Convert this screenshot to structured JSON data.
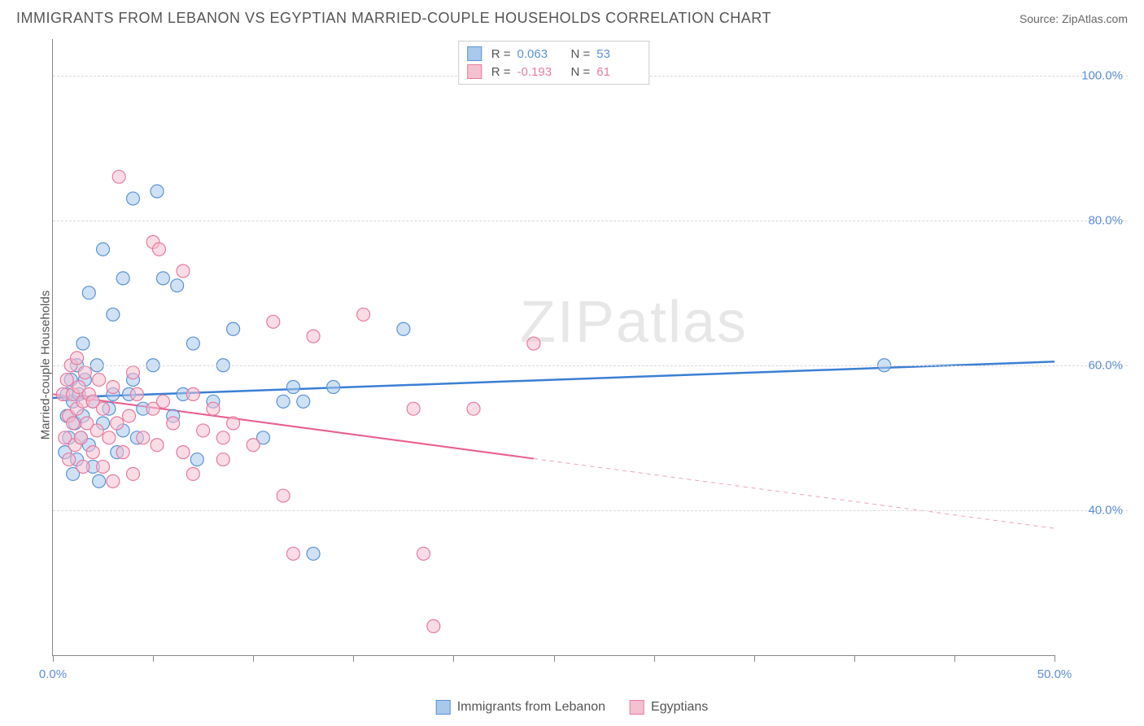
{
  "title": "IMMIGRANTS FROM LEBANON VS EGYPTIAN MARRIED-COUPLE HOUSEHOLDS CORRELATION CHART",
  "source_label": "Source: ZipAtlas.com",
  "y_axis_label": "Married-couple Households",
  "watermark": "ZIPatlas",
  "chart": {
    "type": "scatter",
    "xlim": [
      0,
      50
    ],
    "ylim": [
      20,
      105
    ],
    "background_color": "#ffffff",
    "grid_color": "#d8d8d8",
    "x_ticks": [
      0,
      5,
      10,
      15,
      20,
      25,
      30,
      35,
      40,
      45,
      50
    ],
    "x_tick_labels": {
      "0": "0.0%",
      "50": "50.0%"
    },
    "x_label_color": "#5b8fd6",
    "y_gridlines": [
      40,
      60,
      80,
      100
    ],
    "y_tick_labels": {
      "40": "40.0%",
      "60": "60.0%",
      "80": "80.0%",
      "100": "100.0%"
    },
    "y_label_color": "#5b8fd6",
    "marker_radius": 8,
    "marker_opacity": 0.55,
    "marker_stroke_width": 1.2
  },
  "series": [
    {
      "name": "Immigrants from Lebanon",
      "color_fill": "#a8c8ec",
      "color_stroke": "#5a93d6",
      "R": "0.063",
      "N": "53",
      "trend": {
        "x1": 0,
        "y1": 55.5,
        "x2": 50,
        "y2": 60.5,
        "solid_until_x": 50,
        "color": "#3b7fd4",
        "width": 2.5
      },
      "points": [
        [
          0.6,
          48
        ],
        [
          0.7,
          53
        ],
        [
          0.7,
          56
        ],
        [
          0.8,
          50
        ],
        [
          0.9,
          58
        ],
        [
          1.0,
          45
        ],
        [
          1.0,
          55
        ],
        [
          1.1,
          52
        ],
        [
          1.2,
          60
        ],
        [
          1.2,
          47
        ],
        [
          1.3,
          56
        ],
        [
          1.4,
          50
        ],
        [
          1.5,
          63
        ],
        [
          1.5,
          53
        ],
        [
          1.6,
          58
        ],
        [
          1.8,
          49
        ],
        [
          1.8,
          70
        ],
        [
          2.0,
          55
        ],
        [
          2.0,
          46
        ],
        [
          2.2,
          60
        ],
        [
          2.3,
          44
        ],
        [
          2.5,
          52
        ],
        [
          2.5,
          76
        ],
        [
          2.8,
          54
        ],
        [
          3.0,
          56
        ],
        [
          3.0,
          67
        ],
        [
          3.2,
          48
        ],
        [
          3.5,
          72
        ],
        [
          3.5,
          51
        ],
        [
          3.8,
          56
        ],
        [
          4.0,
          58
        ],
        [
          4.0,
          83
        ],
        [
          4.2,
          50
        ],
        [
          4.5,
          54
        ],
        [
          5.0,
          60
        ],
        [
          5.2,
          84
        ],
        [
          5.5,
          72
        ],
        [
          6.0,
          53
        ],
        [
          6.2,
          71
        ],
        [
          6.5,
          56
        ],
        [
          7.0,
          63
        ],
        [
          7.2,
          47
        ],
        [
          8.0,
          55
        ],
        [
          8.5,
          60
        ],
        [
          9.0,
          65
        ],
        [
          11.5,
          55
        ],
        [
          12.0,
          57
        ],
        [
          13.0,
          34
        ],
        [
          12.5,
          55
        ],
        [
          10.5,
          50
        ],
        [
          14.0,
          57
        ],
        [
          17.5,
          65
        ],
        [
          41.5,
          60
        ]
      ]
    },
    {
      "name": "Egyptians",
      "color_fill": "#f5c0cf",
      "color_stroke": "#e77ba0",
      "R": "-0.193",
      "N": "61",
      "trend": {
        "x1": 0,
        "y1": 56,
        "x2": 50,
        "y2": 37.5,
        "solid_until_x": 24,
        "color": "#e85f8f",
        "width": 2
      },
      "points": [
        [
          0.5,
          56
        ],
        [
          0.6,
          50
        ],
        [
          0.7,
          58
        ],
        [
          0.8,
          53
        ],
        [
          0.8,
          47
        ],
        [
          0.9,
          60
        ],
        [
          1.0,
          52
        ],
        [
          1.0,
          56
        ],
        [
          1.1,
          49
        ],
        [
          1.2,
          61
        ],
        [
          1.2,
          54
        ],
        [
          1.3,
          57
        ],
        [
          1.4,
          50
        ],
        [
          1.5,
          55
        ],
        [
          1.5,
          46
        ],
        [
          1.6,
          59
        ],
        [
          1.7,
          52
        ],
        [
          1.8,
          56
        ],
        [
          2.0,
          48
        ],
        [
          2.0,
          55
        ],
        [
          2.2,
          51
        ],
        [
          2.3,
          58
        ],
        [
          2.5,
          46
        ],
        [
          2.5,
          54
        ],
        [
          2.8,
          50
        ],
        [
          3.0,
          44
        ],
        [
          3.0,
          57
        ],
        [
          3.2,
          52
        ],
        [
          3.3,
          86
        ],
        [
          3.5,
          48
        ],
        [
          3.8,
          53
        ],
        [
          4.0,
          59
        ],
        [
          4.0,
          45
        ],
        [
          4.2,
          56
        ],
        [
          4.5,
          50
        ],
        [
          5.0,
          54
        ],
        [
          5.0,
          77
        ],
        [
          5.2,
          49
        ],
        [
          5.3,
          76
        ],
        [
          5.5,
          55
        ],
        [
          6.0,
          52
        ],
        [
          6.5,
          48
        ],
        [
          6.5,
          73
        ],
        [
          7.0,
          56
        ],
        [
          7.0,
          45
        ],
        [
          7.5,
          51
        ],
        [
          8.0,
          54
        ],
        [
          8.5,
          47
        ],
        [
          8.5,
          50
        ],
        [
          9.0,
          52
        ],
        [
          10.0,
          49
        ],
        [
          11.0,
          66
        ],
        [
          11.5,
          42
        ],
        [
          12.0,
          34
        ],
        [
          13.0,
          64
        ],
        [
          15.5,
          67
        ],
        [
          18.0,
          54
        ],
        [
          18.5,
          34
        ],
        [
          19.0,
          24
        ],
        [
          21.0,
          54
        ],
        [
          24.0,
          63
        ]
      ]
    }
  ],
  "legend_bottom": [
    {
      "label": "Immigrants from Lebanon",
      "fill": "#a8c8ec",
      "stroke": "#5a93d6"
    },
    {
      "label": "Egyptians",
      "fill": "#f5c0cf",
      "stroke": "#e77ba0"
    }
  ]
}
